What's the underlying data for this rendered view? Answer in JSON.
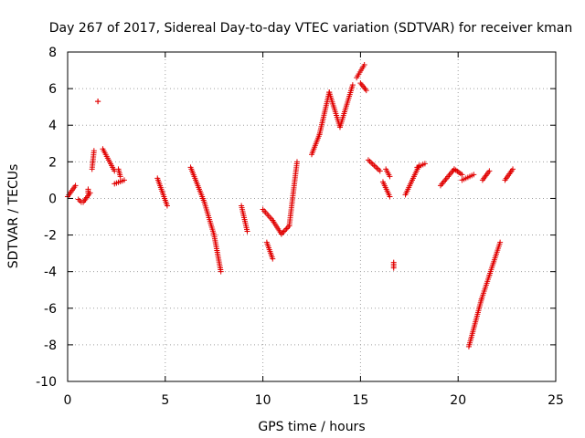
{
  "chart_data": {
    "type": "scatter",
    "title": "Day 267 of 2017, Sidereal Day-to-day VTEC variation (SDTVAR) for receiver kman",
    "xlabel": "GPS time / hours",
    "ylabel": "SDTVAR / TECUs",
    "xlim": [
      0,
      25
    ],
    "ylim": [
      -10,
      8
    ],
    "xticks": [
      0,
      5,
      10,
      15,
      20,
      25
    ],
    "yticks": [
      -10,
      -8,
      -6,
      -4,
      -2,
      0,
      2,
      4,
      6,
      8
    ],
    "grid": true,
    "marker": "plus",
    "color": "#e00000",
    "segments": [
      [
        [
          0.0,
          0.1
        ],
        [
          0.4,
          0.7
        ]
      ],
      [
        [
          0.55,
          -0.05
        ],
        [
          0.7,
          -0.2
        ]
      ],
      [
        [
          0.8,
          -0.2
        ],
        [
          1.15,
          0.3
        ]
      ],
      [
        [
          1.05,
          0.5
        ],
        [
          1.05,
          0.3
        ]
      ],
      [
        [
          1.25,
          1.6
        ],
        [
          1.35,
          2.6
        ]
      ],
      [
        [
          1.55,
          5.3
        ],
        [
          1.55,
          5.3
        ]
      ],
      [
        [
          1.8,
          2.7
        ],
        [
          2.4,
          1.5
        ]
      ],
      [
        [
          2.4,
          0.8
        ],
        [
          2.9,
          1.0
        ]
      ],
      [
        [
          2.6,
          1.6
        ],
        [
          2.7,
          1.2
        ]
      ],
      [
        [
          4.6,
          1.1
        ],
        [
          5.1,
          -0.4
        ]
      ],
      [
        [
          6.3,
          1.7
        ],
        [
          7.0,
          -0.2
        ]
      ],
      [
        [
          7.0,
          -0.2
        ],
        [
          7.5,
          -2.0
        ]
      ],
      [
        [
          7.5,
          -2.0
        ],
        [
          7.85,
          -4.0
        ]
      ],
      [
        [
          8.9,
          -0.4
        ],
        [
          9.2,
          -1.8
        ]
      ],
      [
        [
          10.0,
          -0.6
        ],
        [
          10.5,
          -1.2
        ]
      ],
      [
        [
          10.5,
          -1.2
        ],
        [
          10.95,
          -1.95
        ]
      ],
      [
        [
          10.2,
          -2.4
        ],
        [
          10.5,
          -3.3
        ]
      ],
      [
        [
          10.95,
          -1.95
        ],
        [
          11.35,
          -1.5
        ]
      ],
      [
        [
          11.35,
          -1.5
        ],
        [
          11.75,
          2.0
        ]
      ],
      [
        [
          12.5,
          2.4
        ],
        [
          12.9,
          3.5
        ]
      ],
      [
        [
          12.9,
          3.5
        ],
        [
          13.4,
          5.8
        ]
      ],
      [
        [
          13.4,
          5.8
        ],
        [
          13.95,
          3.9
        ]
      ],
      [
        [
          13.95,
          3.9
        ],
        [
          14.6,
          6.2
        ]
      ],
      [
        [
          14.8,
          6.6
        ],
        [
          15.2,
          7.3
        ]
      ],
      [
        [
          15.0,
          6.3
        ],
        [
          15.3,
          5.9
        ]
      ],
      [
        [
          15.4,
          2.1
        ],
        [
          16.0,
          1.5
        ]
      ],
      [
        [
          16.15,
          0.9
        ],
        [
          16.5,
          0.1
        ]
      ],
      [
        [
          16.3,
          1.6
        ],
        [
          16.5,
          1.2
        ]
      ],
      [
        [
          16.7,
          -3.5
        ],
        [
          16.7,
          -3.8
        ]
      ],
      [
        [
          17.3,
          0.2
        ],
        [
          18.0,
          1.8
        ]
      ],
      [
        [
          17.9,
          1.7
        ],
        [
          18.3,
          1.9
        ]
      ],
      [
        [
          19.1,
          0.7
        ],
        [
          19.8,
          1.6
        ]
      ],
      [
        [
          19.8,
          1.6
        ],
        [
          20.2,
          1.3
        ]
      ],
      [
        [
          20.2,
          1.0
        ],
        [
          20.8,
          1.3
        ]
      ],
      [
        [
          20.55,
          -8.1
        ],
        [
          21.2,
          -5.5
        ]
      ],
      [
        [
          21.2,
          -5.5
        ],
        [
          21.6,
          -4.2
        ]
      ],
      [
        [
          21.6,
          -4.2
        ],
        [
          22.15,
          -2.4
        ]
      ],
      [
        [
          21.25,
          1.0
        ],
        [
          21.6,
          1.5
        ]
      ],
      [
        [
          22.4,
          1.0
        ],
        [
          22.8,
          1.6
        ]
      ]
    ]
  }
}
